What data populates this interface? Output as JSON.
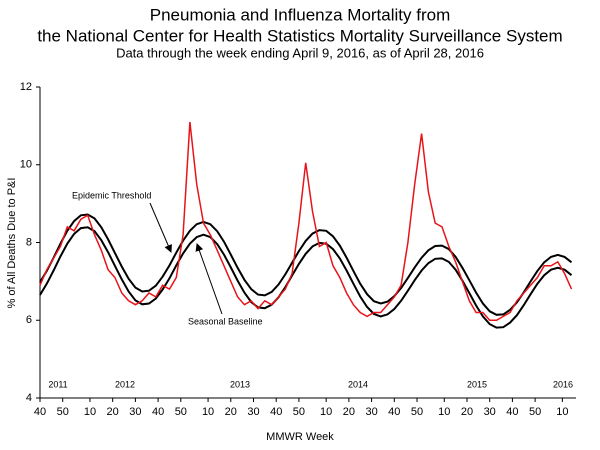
{
  "chart_data": {
    "type": "line",
    "title": "Pneumonia and Influenza Mortality from",
    "title_line2": "the National Center for Health Statistics Mortality Surveillance System",
    "subtitle": "Data through the week ending April 9, 2016, as of April 28, 2016",
    "x_label": "MMWR Week",
    "y_label": "% of All Deaths Due to P&I",
    "annotations": [
      "Epidemic Threshold",
      "Seasonal Baseline"
    ],
    "year_labels": [
      "2011",
      "2012",
      "2013",
      "2014",
      "2015",
      "2016"
    ],
    "xlim": [
      0,
      236
    ],
    "ylim": [
      4,
      12
    ],
    "yticks": [
      4,
      6,
      8,
      10,
      12
    ],
    "xticks": [
      {
        "value": 0,
        "label": "40"
      },
      {
        "value": 10,
        "label": "50"
      },
      {
        "value": 22,
        "label": "10"
      },
      {
        "value": 32,
        "label": "20"
      },
      {
        "value": 42,
        "label": "30"
      },
      {
        "value": 52,
        "label": "40"
      },
      {
        "value": 62,
        "label": "50"
      },
      {
        "value": 74,
        "label": "10"
      },
      {
        "value": 84,
        "label": "20"
      },
      {
        "value": 94,
        "label": "30"
      },
      {
        "value": 104,
        "label": "40"
      },
      {
        "value": 114,
        "label": "50"
      },
      {
        "value": 126,
        "label": "10"
      },
      {
        "value": 136,
        "label": "20"
      },
      {
        "value": 146,
        "label": "30"
      },
      {
        "value": 156,
        "label": "40"
      },
      {
        "value": 166,
        "label": "50"
      },
      {
        "value": 178,
        "label": "10"
      },
      {
        "value": 188,
        "label": "20"
      },
      {
        "value": 198,
        "label": "30"
      },
      {
        "value": 208,
        "label": "40"
      },
      {
        "value": 218,
        "label": "50"
      },
      {
        "value": 230,
        "label": "10"
      }
    ],
    "grid": false,
    "x": [
      0,
      3,
      6,
      9,
      12,
      15,
      18,
      21,
      24,
      27,
      30,
      33,
      36,
      39,
      42,
      45,
      48,
      51,
      54,
      57,
      60,
      63,
      66,
      69,
      72,
      75,
      78,
      81,
      84,
      87,
      90,
      93,
      96,
      99,
      102,
      105,
      108,
      111,
      114,
      117,
      120,
      123,
      126,
      129,
      132,
      135,
      138,
      141,
      144,
      147,
      150,
      153,
      156,
      159,
      162,
      165,
      168,
      171,
      174,
      177,
      180,
      183,
      186,
      189,
      192,
      195,
      198,
      201,
      204,
      207,
      210,
      213,
      216,
      219,
      222,
      225,
      228,
      231,
      234
    ],
    "series": [
      {
        "name": "Epidemic Threshold",
        "color": "#000000",
        "values": [
          6.98,
          7.27,
          7.61,
          7.97,
          8.3,
          8.55,
          8.7,
          8.72,
          8.62,
          8.39,
          8.08,
          7.73,
          7.38,
          7.07,
          6.84,
          6.74,
          6.76,
          6.89,
          7.12,
          7.41,
          7.74,
          8.05,
          8.3,
          8.47,
          8.53,
          8.47,
          8.29,
          8.02,
          7.69,
          7.35,
          7.04,
          6.8,
          6.66,
          6.64,
          6.73,
          6.92,
          7.18,
          7.48,
          7.78,
          8.04,
          8.23,
          8.32,
          8.3,
          8.16,
          7.92,
          7.61,
          7.27,
          6.94,
          6.67,
          6.49,
          6.43,
          6.48,
          6.62,
          6.83,
          7.09,
          7.36,
          7.61,
          7.8,
          7.91,
          7.92,
          7.83,
          7.63,
          7.35,
          7.03,
          6.71,
          6.43,
          6.23,
          6.14,
          6.15,
          6.27,
          6.46,
          6.72,
          7.0,
          7.27,
          7.49,
          7.63,
          7.68,
          7.63,
          7.49
        ]
      },
      {
        "name": "Seasonal Baseline",
        "color": "#000000",
        "values": [
          6.65,
          6.94,
          7.28,
          7.64,
          7.97,
          8.22,
          8.37,
          8.39,
          8.29,
          8.06,
          7.75,
          7.4,
          7.05,
          6.74,
          6.51,
          6.41,
          6.43,
          6.56,
          6.79,
          7.08,
          7.41,
          7.72,
          7.97,
          8.14,
          8.2,
          8.14,
          7.96,
          7.69,
          7.36,
          7.02,
          6.71,
          6.47,
          6.33,
          6.31,
          6.4,
          6.59,
          6.85,
          7.15,
          7.45,
          7.71,
          7.9,
          7.99,
          7.97,
          7.83,
          7.59,
          7.28,
          6.94,
          6.61,
          6.34,
          6.16,
          6.1,
          6.15,
          6.29,
          6.5,
          6.76,
          7.03,
          7.28,
          7.47,
          7.58,
          7.59,
          7.5,
          7.3,
          7.02,
          6.7,
          6.38,
          6.1,
          5.9,
          5.81,
          5.82,
          5.94,
          6.13,
          6.39,
          6.67,
          6.94,
          7.16,
          7.3,
          7.35,
          7.3,
          7.16
        ]
      },
      {
        "name": "P&I Mortality",
        "color": "#e8141a",
        "values": [
          6.9,
          7.3,
          7.6,
          7.9,
          8.4,
          8.3,
          8.6,
          8.7,
          8.2,
          7.8,
          7.3,
          7.1,
          6.7,
          6.5,
          6.4,
          6.5,
          6.7,
          6.6,
          6.9,
          6.8,
          7.1,
          8.2,
          11.1,
          9.5,
          8.5,
          8.2,
          7.8,
          7.4,
          7.0,
          6.6,
          6.4,
          6.5,
          6.3,
          6.5,
          6.4,
          6.6,
          6.8,
          7.2,
          8.5,
          10.05,
          8.8,
          7.9,
          8.0,
          7.4,
          7.1,
          6.7,
          6.4,
          6.2,
          6.1,
          6.2,
          6.2,
          6.4,
          6.6,
          6.9,
          8.0,
          9.5,
          10.8,
          9.3,
          8.5,
          8.4,
          7.9,
          7.5,
          7.0,
          6.5,
          6.2,
          6.2,
          6.0,
          6.0,
          6.1,
          6.2,
          6.5,
          6.7,
          6.9,
          7.1,
          7.4,
          7.4,
          7.5,
          7.2,
          6.8
        ]
      }
    ]
  }
}
